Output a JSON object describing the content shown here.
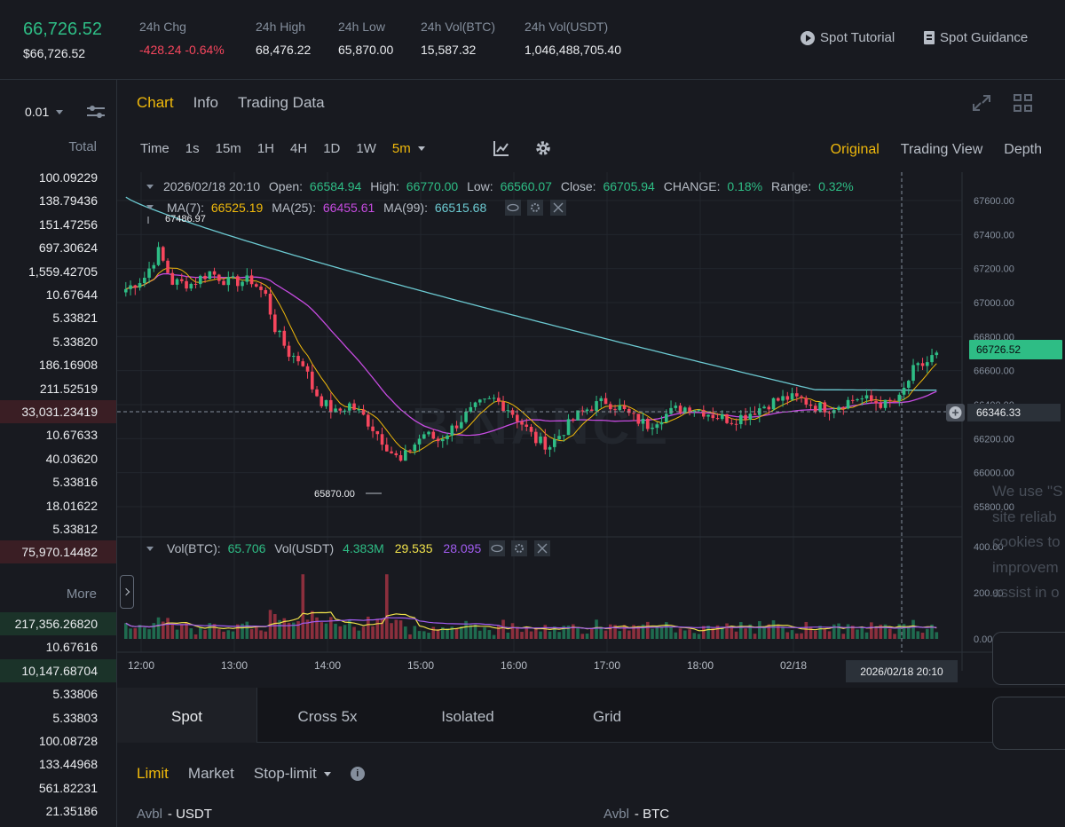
{
  "ticker": {
    "price": "66,726.52",
    "price_usd": "$66,726.52",
    "stats": [
      {
        "label": "24h Chg",
        "value": "-428.24 -0.64%",
        "tone": "red"
      },
      {
        "label": "24h High",
        "value": "68,476.22",
        "tone": ""
      },
      {
        "label": "24h Low",
        "value": "65,870.00",
        "tone": ""
      },
      {
        "label": "24h Vol(BTC)",
        "value": "15,587.32",
        "tone": ""
      },
      {
        "label": "24h Vol(USDT)",
        "value": "1,046,488,705.40",
        "tone": ""
      }
    ],
    "links": {
      "tutorial": "Spot Tutorial",
      "guidance": "Spot Guidance"
    }
  },
  "orderbook": {
    "precision": "0.01",
    "total_header": "Total",
    "more_header": "More",
    "asks": [
      "100.09229",
      "138.79436",
      "151.47256",
      "697.30624",
      "1,559.42705",
      "10.67644",
      "5.33821",
      "5.33820",
      "186.16908",
      "211.52519",
      "33,031.23419",
      "10.67633",
      "40.03620",
      "5.33816",
      "18.01622",
      "5.33812",
      "75,970.14482"
    ],
    "bids": [
      "217,356.26820",
      "10.67616",
      "10,147.68704",
      "5.33806",
      "5.33803",
      "100.08728",
      "133.44968",
      "561.82231",
      "21.35186"
    ]
  },
  "chart": {
    "tabs": [
      "Chart",
      "Info",
      "Trading Data"
    ],
    "active_tab": "Chart",
    "timeframes": [
      "Time",
      "1s",
      "15m",
      "1H",
      "4H",
      "1D",
      "1W"
    ],
    "active_timeframe": "5m",
    "views": [
      "Original",
      "Trading View",
      "Depth"
    ],
    "active_view": "Original",
    "ohlc": {
      "date": "2026/02/18 20:10",
      "open_label": "Open:",
      "open": "66584.94",
      "high_label": "High:",
      "high": "66770.00",
      "low_label": "Low:",
      "low": "66560.07",
      "close_label": "Close:",
      "close": "66705.94",
      "change_label": "CHANGE:",
      "change": "0.18%",
      "range_label": "Range:",
      "range": "0.32%"
    },
    "ma": {
      "ma7_label": "MA(7):",
      "ma7": "66525.19",
      "ma25_label": "MA(25):",
      "ma25": "66455.61",
      "ma99_label": "MA(99):",
      "ma99": "66515.68"
    },
    "vol": {
      "btc_label": "Vol(BTC):",
      "btc": "65.706",
      "usdt_label": "Vol(USDT)",
      "usdt": "4.383M",
      "v1": "29.535",
      "v2": "28.095"
    },
    "watermark": "BINANCE",
    "high_marker": "67486.97",
    "low_marker": "65870.00",
    "last_price_tag": "66726.52",
    "crosshair_price": "66346.33",
    "crosshair_time": "2026/02/18 20:10",
    "price_ticks": [
      "67600.00",
      "67400.00",
      "67200.00",
      "67000.00",
      "66800.00",
      "66600.00",
      "66400.00",
      "66200.00",
      "66000.00",
      "65800.00"
    ],
    "vol_ticks": [
      "400.00",
      "200.00",
      "0.00"
    ],
    "time_ticks": [
      "12:00",
      "13:00",
      "14:00",
      "15:00",
      "16:00",
      "17:00",
      "18:00",
      "02/18"
    ],
    "colors": {
      "up": "#2ebd85",
      "down": "#f6465d",
      "ma7": "#f0b90b",
      "ma25": "#c64be0",
      "ma99": "#6ccad2"
    }
  },
  "form": {
    "modes": [
      "Spot",
      "Cross 5x",
      "Isolated",
      "Grid"
    ],
    "active_mode": "Spot",
    "order_types": {
      "limit": "Limit",
      "market": "Market",
      "stop": "Stop-limit"
    },
    "avbl_label": "Avbl",
    "avbl_usdt": "- USDT",
    "avbl_btc": "- BTC"
  },
  "cookie": {
    "lines": [
      "We use \"S",
      "site reliab",
      "cookies to",
      "improvem",
      "assist in o"
    ]
  }
}
